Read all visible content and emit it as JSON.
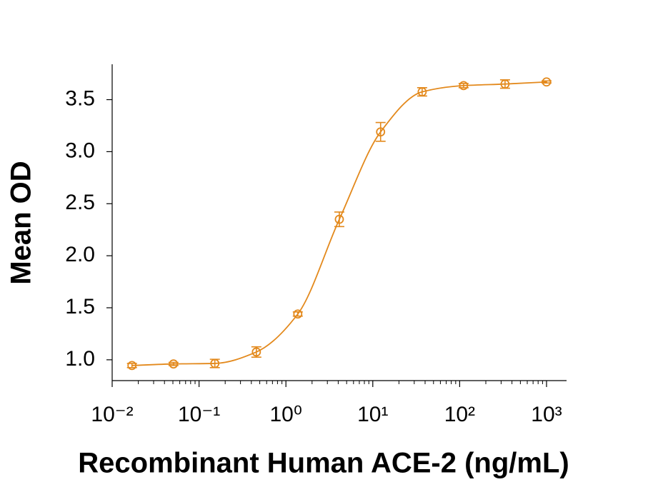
{
  "chart_data": {
    "type": "scatter",
    "xlabel": "Recombinant Human ACE-2 (ng/mL)",
    "ylabel": "Mean OD",
    "x_log": true,
    "xlim": [
      0.01,
      1700
    ],
    "xticks": [
      {
        "value": 0.01,
        "label": "10⁻²"
      },
      {
        "value": 0.1,
        "label": "10⁻¹"
      },
      {
        "value": 1,
        "label": "10⁰"
      },
      {
        "value": 10,
        "label": "10¹"
      },
      {
        "value": 100,
        "label": "10²"
      },
      {
        "value": 1000,
        "label": "10³"
      }
    ],
    "ylim": [
      0.8,
      3.84
    ],
    "yticks": [
      {
        "value": 1,
        "label": "1.0"
      },
      1.5,
      {
        "value": 2,
        "label": "2.0"
      },
      2.5,
      {
        "value": 3,
        "label": "3.0"
      },
      3.5
    ],
    "series": [
      {
        "color": "#e3891c",
        "x": [
          0.0169,
          0.0508,
          0.152,
          0.457,
          1.37,
          4.12,
          12.3,
          37,
          111,
          333,
          1000
        ],
        "values": [
          0.945,
          0.96,
          0.965,
          1.075,
          1.44,
          2.35,
          3.19,
          3.575,
          3.635,
          3.65,
          3.67
        ],
        "errors": [
          0.02,
          0.015,
          0.04,
          0.05,
          0.02,
          0.07,
          0.09,
          0.04,
          0.02,
          0.04,
          0.01
        ]
      }
    ]
  }
}
